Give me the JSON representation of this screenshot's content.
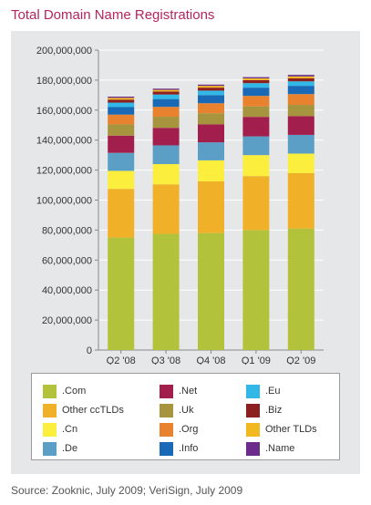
{
  "title": "Total Domain Name Registrations",
  "source": "Source: Zooknic, July 2009; VeriSign, July 2009",
  "chart_data": {
    "type": "bar",
    "stacked": true,
    "categories": [
      "Q2 '08",
      "Q3 '08",
      "Q4 '08",
      "Q1 '09",
      "Q2 '09"
    ],
    "ylim": [
      0,
      200000000
    ],
    "yticks": [
      0,
      20000000,
      40000000,
      60000000,
      80000000,
      100000000,
      120000000,
      140000000,
      160000000,
      180000000,
      200000000
    ],
    "ytick_labels": [
      "0",
      "20,000,000",
      "40,000,000",
      "60,000,000",
      "80,000,000",
      "100,000,000",
      "120,000,000",
      "140,000,000",
      "160,000,000",
      "180,000,000",
      "200,000,000"
    ],
    "grid": true,
    "legend_position": "bottom",
    "series": [
      {
        "name": ".Com",
        "color": "#b2c23a",
        "values": [
          75000000,
          77500000,
          78000000,
          80000000,
          81000000
        ]
      },
      {
        "name": "Other ccTLDs",
        "color": "#f0b128",
        "values": [
          32500000,
          33000000,
          34500000,
          36000000,
          37000000
        ]
      },
      {
        "name": ".Cn",
        "color": "#fcee3c",
        "values": [
          12000000,
          13500000,
          14000000,
          14000000,
          13000000
        ]
      },
      {
        "name": ".De",
        "color": "#5b9fc7",
        "values": [
          12000000,
          12500000,
          12000000,
          12500000,
          12500000
        ]
      },
      {
        "name": ".Net",
        "color": "#a21f4d",
        "values": [
          11500000,
          11700000,
          12000000,
          13000000,
          12500000
        ]
      },
      {
        "name": ".Uk",
        "color": "#a6943f",
        "values": [
          7500000,
          7400000,
          7400000,
          7000000,
          7500000
        ]
      },
      {
        "name": ".Org",
        "color": "#e8822f",
        "values": [
          6500000,
          6600000,
          6700000,
          7000000,
          7200000
        ]
      },
      {
        "name": ".Info",
        "color": "#1a69b7",
        "values": [
          5000000,
          5200000,
          5400000,
          5500000,
          5500000
        ]
      },
      {
        "name": ".Eu",
        "color": "#31b8e6",
        "values": [
          3000000,
          3000000,
          3000000,
          3000000,
          3000000
        ]
      },
      {
        "name": ".Biz",
        "color": "#8c2020",
        "values": [
          2000000,
          2000000,
          2000000,
          2000000,
          2000000
        ]
      },
      {
        "name": "Other TLDs",
        "color": "#f2b81f",
        "values": [
          1200000,
          1100000,
          1200000,
          1200000,
          1300000
        ]
      },
      {
        "name": ".Name",
        "color": "#6b2c8c",
        "values": [
          800000,
          800000,
          800000,
          800000,
          1000000
        ]
      }
    ]
  },
  "legend_layout": [
    [
      ".Com",
      "Other ccTLDs",
      ".Cn",
      ".De"
    ],
    [
      ".Net",
      ".Uk",
      ".Org",
      ".Info"
    ],
    [
      ".Eu",
      ".Biz",
      "Other TLDs",
      ".Name"
    ]
  ]
}
